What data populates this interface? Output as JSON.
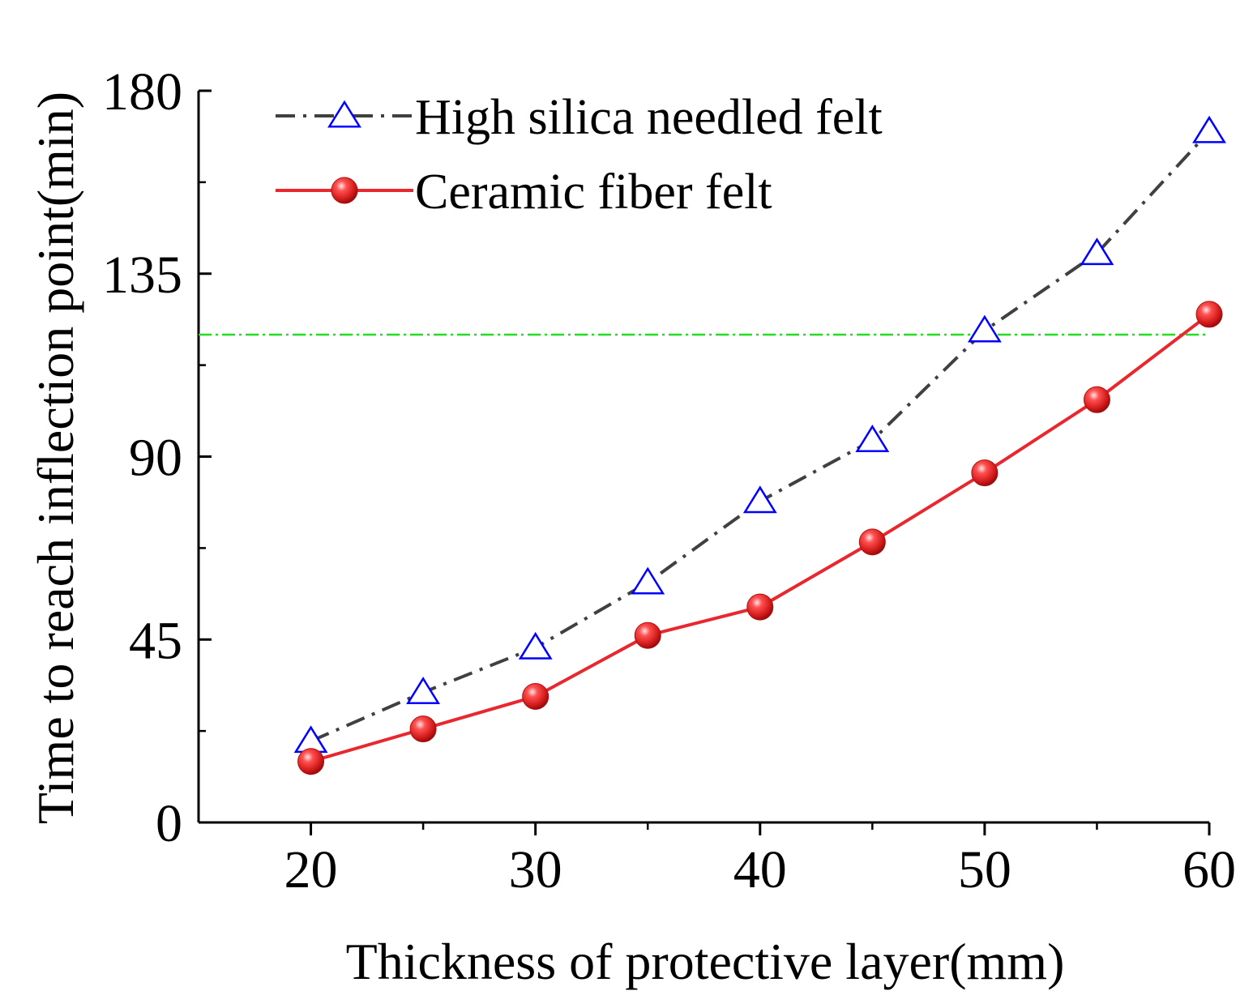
{
  "chart_data": {
    "type": "line",
    "xlabel": "Thickness of protective layer(mm)",
    "ylabel": "Time to reach  inflection point(min)",
    "xlim": [
      15,
      60
    ],
    "ylim": [
      0,
      180
    ],
    "xticks": [
      20,
      30,
      40,
      50,
      60
    ],
    "xtick_labels": [
      "20",
      "30",
      "40",
      "50",
      "60"
    ],
    "yticks": [
      0,
      45,
      90,
      135,
      180
    ],
    "ytick_labels": [
      "0",
      "45",
      "90",
      "135",
      "180"
    ],
    "grid": false,
    "legend_position": "top-left",
    "x": [
      20,
      25,
      30,
      35,
      40,
      45,
      50,
      55,
      60
    ],
    "series": [
      {
        "name": "High silica needled felt",
        "marker": "open-triangle",
        "line_style": "dash-dot",
        "line_color": "#404040",
        "marker_color": "#0000ff",
        "values": [
          20,
          32,
          43,
          59,
          79,
          94,
          121,
          140,
          170
        ]
      },
      {
        "name": "Ceramic fiber felt",
        "marker": "filled-sphere",
        "line_style": "solid",
        "line_color": "#e8282e",
        "marker_color": "#e8282e",
        "values": [
          15,
          23,
          31,
          46,
          53,
          69,
          86,
          104,
          125
        ]
      }
    ],
    "reference_lines": [
      {
        "orientation": "horizontal",
        "y": 120,
        "color": "#22dd22",
        "line_style": "dash-dot"
      }
    ]
  }
}
